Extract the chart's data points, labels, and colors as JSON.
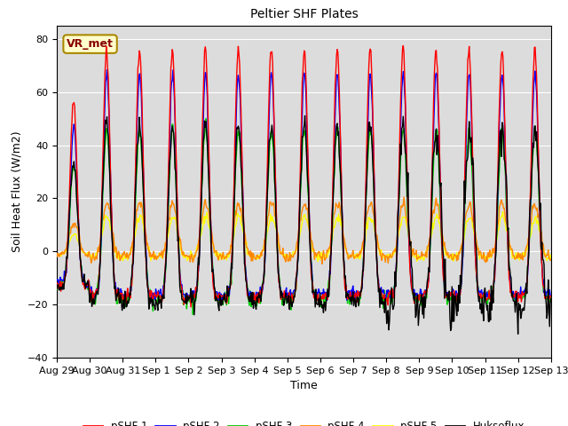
{
  "title": "Peltier SHF Plates",
  "xlabel": "Time",
  "ylabel": "Soil Heat Flux (W/m2)",
  "ylim": [
    -40,
    85
  ],
  "yticks": [
    -40,
    -20,
    0,
    20,
    40,
    60,
    80
  ],
  "bg_color": "#dcdcdc",
  "annotation_text": "VR_met",
  "annotation_bg": "#ffffcc",
  "annotation_border": "#aa8800",
  "annotation_text_color": "#880000",
  "series_colors": {
    "pSHF 1": "#ff0000",
    "pSHF 2": "#0000ff",
    "pSHF 3": "#00cc00",
    "pSHF 4": "#ff8800",
    "pSHF 5": "#ffff00",
    "Hukseflux": "#000000"
  },
  "n_days": 15,
  "samples_per_day": 48
}
